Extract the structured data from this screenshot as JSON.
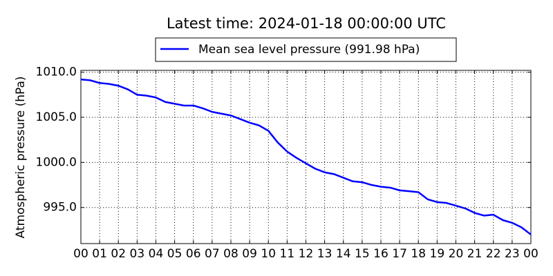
{
  "chart_data": {
    "type": "line",
    "title": "Latest time: 2024-01-18 00:00:00 UTC",
    "ylabel": "Atmospheric pressure (hPa)",
    "x": [
      0,
      0.5,
      1,
      1.5,
      2,
      2.5,
      3,
      3.5,
      4,
      4.5,
      5,
      5.5,
      6,
      6.5,
      7,
      7.5,
      8,
      8.5,
      9,
      9.5,
      10,
      10.5,
      11,
      11.5,
      12,
      12.5,
      13,
      13.5,
      14,
      14.5,
      15,
      15.5,
      16,
      16.5,
      17,
      17.5,
      18,
      18.5,
      19,
      19.5,
      20,
      20.5,
      21,
      21.5,
      22,
      22.5,
      23,
      23.5,
      24
    ],
    "series": [
      {
        "name": "Mean sea level pressure (991.98 hPa)",
        "color": "#0000ff",
        "values": [
          1009.2,
          1009.1,
          1008.8,
          1008.7,
          1008.5,
          1008.1,
          1007.5,
          1007.4,
          1007.2,
          1006.7,
          1006.5,
          1006.3,
          1006.3,
          1006.0,
          1005.6,
          1005.4,
          1005.2,
          1004.8,
          1004.4,
          1004.1,
          1003.5,
          1002.2,
          1001.2,
          1000.5,
          999.9,
          999.3,
          998.9,
          998.7,
          998.3,
          997.9,
          997.8,
          997.5,
          997.3,
          997.2,
          996.9,
          996.8,
          996.7,
          995.9,
          995.6,
          995.5,
          995.2,
          994.9,
          994.4,
          994.1,
          994.2,
          993.6,
          993.3,
          992.8,
          992.0
        ]
      }
    ],
    "xlim": [
      0,
      24
    ],
    "xticks": [
      {
        "value": 0,
        "label": "00"
      },
      {
        "value": 1,
        "label": "01"
      },
      {
        "value": 2,
        "label": "02"
      },
      {
        "value": 3,
        "label": "03"
      },
      {
        "value": 4,
        "label": "04"
      },
      {
        "value": 5,
        "label": "05"
      },
      {
        "value": 6,
        "label": "06"
      },
      {
        "value": 7,
        "label": "07"
      },
      {
        "value": 8,
        "label": "08"
      },
      {
        "value": 9,
        "label": "09"
      },
      {
        "value": 10,
        "label": "10"
      },
      {
        "value": 11,
        "label": "11"
      },
      {
        "value": 12,
        "label": "12"
      },
      {
        "value": 13,
        "label": "13"
      },
      {
        "value": 14,
        "label": "14"
      },
      {
        "value": 15,
        "label": "15"
      },
      {
        "value": 16,
        "label": "16"
      },
      {
        "value": 17,
        "label": "17"
      },
      {
        "value": 18,
        "label": "18"
      },
      {
        "value": 19,
        "label": "19"
      },
      {
        "value": 20,
        "label": "20"
      },
      {
        "value": 21,
        "label": "21"
      },
      {
        "value": 22,
        "label": "22"
      },
      {
        "value": 23,
        "label": "23"
      },
      {
        "value": 24,
        "label": "00"
      }
    ],
    "ylim": [
      991.0,
      1010.2
    ],
    "yticks": [
      {
        "value": 995,
        "label": "995.0"
      },
      {
        "value": 1000,
        "label": "1000.0"
      },
      {
        "value": 1005,
        "label": "1005.0"
      },
      {
        "value": 1010,
        "label": "1010.0"
      }
    ],
    "grid": true
  }
}
